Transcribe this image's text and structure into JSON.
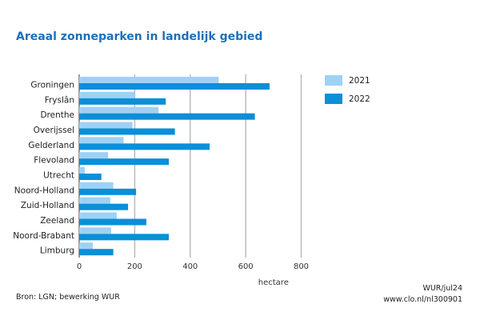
{
  "chart_data": {
    "type": "bar",
    "orientation": "horizontal",
    "title": "Areaal zonneparken in landelijk gebied",
    "xlabel": "hectare",
    "ylabel": "",
    "xlim": [
      0,
      800
    ],
    "xticks": [
      "0",
      "200",
      "400",
      "600",
      "800"
    ],
    "grid": true,
    "legend_position": "right",
    "categories": [
      "Groningen",
      "Fryslân",
      "Drenthe",
      "Overijssel",
      "Gelderland",
      "Flevoland",
      "Utrecht",
      "Noord-Holland",
      "Zuid-Holland",
      "Zeeland",
      "Noord-Brabant",
      "Limburg"
    ],
    "series": [
      {
        "name": "2021",
        "color": "#9fd1f5",
        "values": [
          503,
          200,
          286,
          192,
          160,
          104,
          20,
          123,
          112,
          135,
          115,
          49
        ]
      },
      {
        "name": "2022",
        "color": "#0a8fd8",
        "values": [
          686,
          312,
          633,
          345,
          470,
          323,
          80,
          205,
          176,
          242,
          323,
          123
        ]
      }
    ]
  },
  "footer": {
    "source": "Bron: LGN; bewerking WUR",
    "credit": "WUR/jul24",
    "url": "www.clo.nl/nl300901"
  }
}
